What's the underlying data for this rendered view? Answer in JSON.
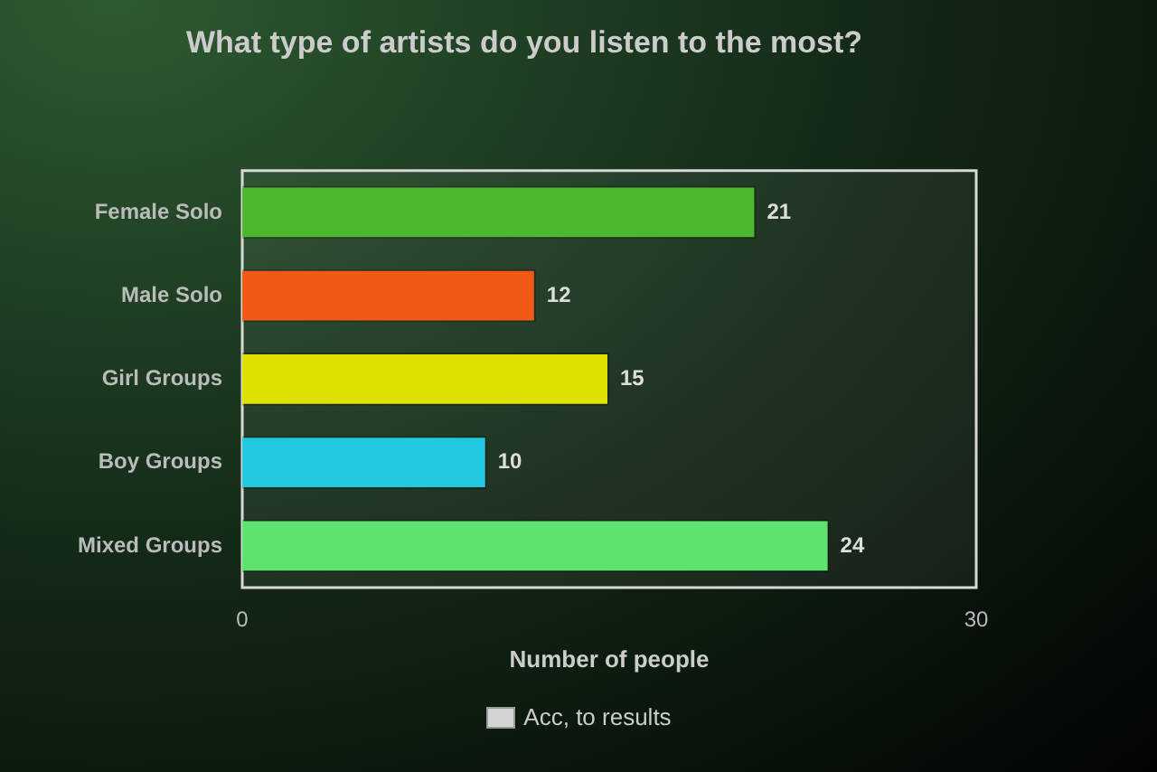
{
  "chart_data": {
    "type": "bar",
    "orientation": "horizontal",
    "title": "What type of artists do you listen to the most?",
    "xlabel": "Number of people",
    "categories": [
      "Female Solo",
      "Male Solo",
      "Girl Groups",
      "Boy Groups",
      "Mixed Groups"
    ],
    "series": [
      {
        "name": "Acc, to results",
        "color": "#d4d4d4",
        "colors": [
          "#4db82f",
          "#f05a14",
          "#e0e000",
          "#22c8e0",
          "#5ee36e"
        ],
        "values": [
          21,
          12,
          15,
          10,
          24
        ]
      }
    ],
    "xlim": [
      0,
      30
    ],
    "xticks": [
      0,
      30
    ],
    "grid": false,
    "legend": "bottom",
    "data_labels": true
  }
}
